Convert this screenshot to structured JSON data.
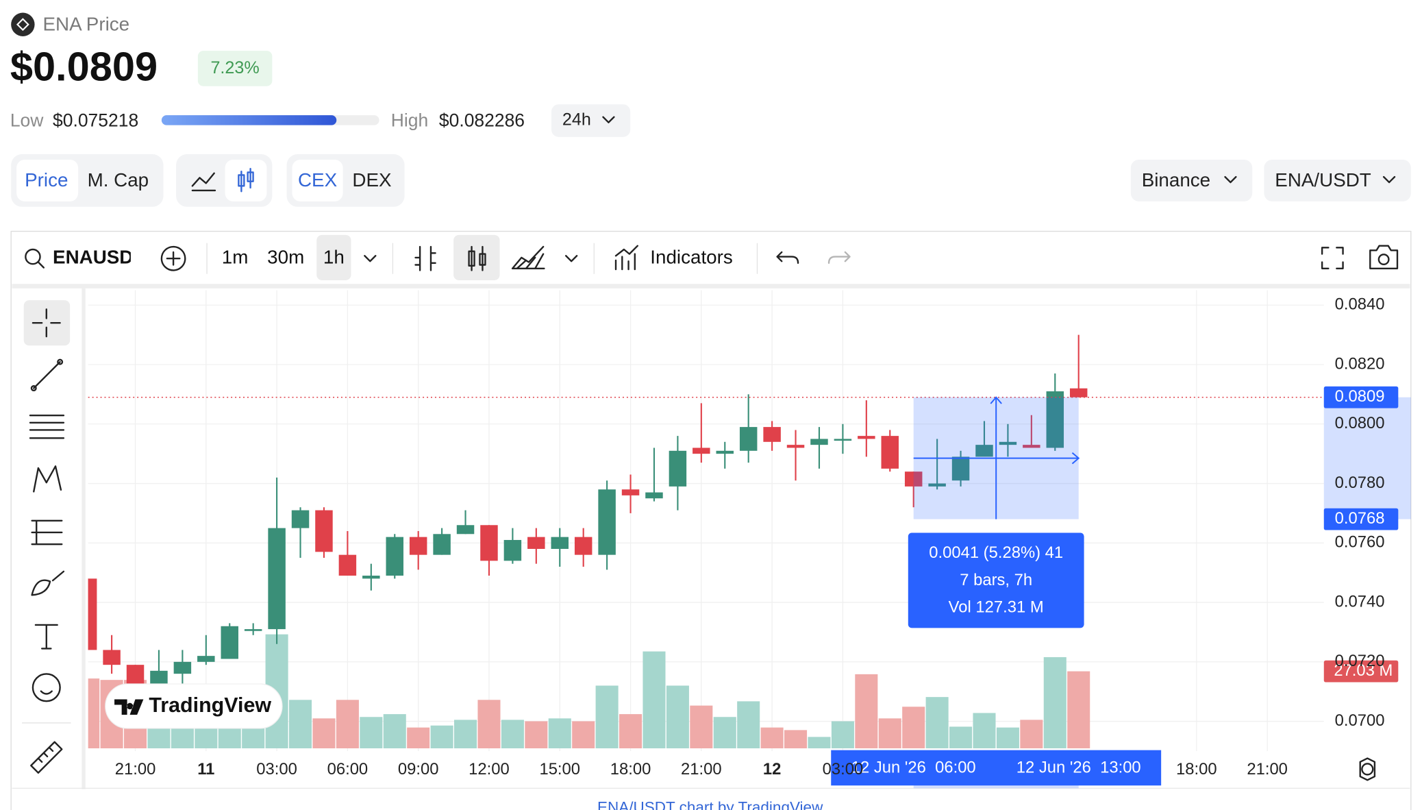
{
  "header": {
    "title": "ENA Price",
    "price": {
      "value": 0.0809,
      "label": "$0.0809"
    },
    "change": "7.23%",
    "low_label": "Low",
    "low": {
      "value": 0.075218,
      "label": "$0.075218"
    },
    "high_label": "High",
    "high": {
      "value": 0.082286,
      "label": "$0.082286"
    },
    "period": "24h"
  },
  "tabs": {
    "metric": [
      "Price",
      "M. Cap"
    ],
    "market": [
      "CEX",
      "DEX"
    ],
    "exchange": "Binance",
    "pair": "ENA/USDT"
  },
  "toolbar": {
    "symbol": "ENAUSD",
    "intervals": [
      "1m",
      "30m",
      "1h"
    ],
    "indicators": "Indicators"
  },
  "watermark": "TradingView",
  "footer": "ENA/USDT chart by TradingView",
  "chart_data": {
    "type": "candlestick",
    "open": [
      0.0748,
      0.0724,
      0.0719,
      0.0709,
      0.0716,
      0.072,
      0.0721,
      0.0731,
      0.0731,
      0.0765,
      0.0771,
      0.0756,
      0.0748,
      0.0749,
      0.0762,
      0.0756,
      0.0763,
      0.0766,
      0.0754,
      0.0762,
      0.0758,
      0.0762,
      0.0756,
      0.0778,
      0.0775,
      0.0779,
      0.0792,
      0.079,
      0.0791,
      0.0799,
      0.0793,
      0.0793,
      0.0795,
      0.0796,
      0.0796,
      0.0784,
      0.0779,
      0.0781,
      0.0789,
      0.0793,
      0.0793,
      0.0792,
      0.0812
    ],
    "high": [
      0.0748,
      0.0729,
      0.0719,
      0.0724,
      0.0724,
      0.0729,
      0.0733,
      0.0733,
      0.0782,
      0.0772,
      0.0772,
      0.0764,
      0.0753,
      0.0763,
      0.0764,
      0.0765,
      0.0771,
      0.0766,
      0.0765,
      0.0765,
      0.0765,
      0.0765,
      0.0781,
      0.0783,
      0.0792,
      0.0796,
      0.0807,
      0.0794,
      0.081,
      0.0801,
      0.0798,
      0.0799,
      0.08,
      0.0808,
      0.0798,
      0.0784,
      0.0795,
      0.0791,
      0.0801,
      0.08,
      0.0803,
      0.0817,
      0.083
    ],
    "low": [
      0.0724,
      0.0716,
      0.0707,
      0.0708,
      0.071,
      0.0719,
      0.0721,
      0.0729,
      0.0726,
      0.0755,
      0.0755,
      0.0749,
      0.0744,
      0.0748,
      0.0751,
      0.0756,
      0.0763,
      0.0749,
      0.0753,
      0.0753,
      0.0752,
      0.0752,
      0.0751,
      0.077,
      0.0774,
      0.0771,
      0.0787,
      0.0785,
      0.0787,
      0.0791,
      0.0781,
      0.0785,
      0.079,
      0.0789,
      0.0784,
      0.0772,
      0.0778,
      0.0779,
      0.0789,
      0.0789,
      0.0792,
      0.0791,
      0.0809
    ],
    "close": [
      0.0724,
      0.0719,
      0.0709,
      0.0717,
      0.072,
      0.0722,
      0.0732,
      0.0731,
      0.0765,
      0.0771,
      0.0757,
      0.0749,
      0.0749,
      0.0762,
      0.0756,
      0.0763,
      0.0766,
      0.0754,
      0.0761,
      0.0758,
      0.0762,
      0.0756,
      0.0778,
      0.0776,
      0.0777,
      0.0791,
      0.079,
      0.0791,
      0.0799,
      0.0794,
      0.0792,
      0.0795,
      0.0795,
      0.0795,
      0.0785,
      0.0779,
      0.078,
      0.0789,
      0.0793,
      0.0794,
      0.0792,
      0.0811,
      0.0809
    ],
    "volume": [
      24.5,
      24,
      24,
      13,
      10,
      8,
      11,
      8,
      40,
      17,
      10.5,
      17,
      11,
      12,
      7.3,
      8,
      10,
      17,
      10,
      9.5,
      10.5,
      9.5,
      22,
      12,
      34,
      22,
      15,
      11,
      16.5,
      7.3,
      6.4,
      4,
      9.5,
      26,
      10.5,
      14.6,
      18,
      7.6,
      12.4,
      7.3,
      10,
      32,
      27.03
    ],
    "up_color": "#3a8f78",
    "down_color": "#e0414a",
    "up_volume_color": "#a5d6cd",
    "down_volume_color": "#efaaa8",
    "xlim": [
      0,
      52.4
    ],
    "xticks": [
      {
        "value": 2,
        "label": "21:00"
      },
      {
        "value": 5,
        "label": "11"
      },
      {
        "value": 8,
        "label": "03:00"
      },
      {
        "value": 11,
        "label": "06:00"
      },
      {
        "value": 14,
        "label": "09:00"
      },
      {
        "value": 17,
        "label": "12:00"
      },
      {
        "value": 20,
        "label": "15:00"
      },
      {
        "value": 23,
        "label": "18:00"
      },
      {
        "value": 26,
        "label": "21:00"
      },
      {
        "value": 29,
        "label": "12"
      },
      {
        "value": 32,
        "label": "03:00"
      },
      {
        "value": 47,
        "label": "18:00"
      },
      {
        "value": 50,
        "label": "21:00"
      }
    ],
    "ylim": [
      0.069,
      0.0845
    ],
    "yticks": [
      {
        "value": 0.084,
        "label": "0.0840"
      },
      {
        "value": 0.082,
        "label": "0.0820"
      },
      {
        "value": 0.08,
        "label": "0.0800"
      },
      {
        "value": 0.078,
        "label": "0.0780"
      },
      {
        "value": 0.076,
        "label": "0.0760"
      },
      {
        "value": 0.074,
        "label": "0.0740"
      },
      {
        "value": 0.072,
        "label": "0.0720"
      },
      {
        "value": 0.07,
        "label": "0.0700"
      }
    ],
    "volume_lim": [
      0,
      120
    ],
    "grid": true,
    "last_price": {
      "value": 0.0809,
      "label": "0.0809"
    },
    "last_volume": {
      "value": 27.03,
      "label": "27.03 M"
    },
    "measure": {
      "start": 35,
      "end": 42,
      "from": {
        "value": 0.0768,
        "label": "0.0768"
      },
      "to": 0.0809,
      "lines": [
        "0.0041 (5.28%) 41",
        "7 bars, 7h",
        "Vol 127.31 M"
      ],
      "start_label": "12 Jun '26  06:00",
      "end_label": "12 Jun '26  13:00"
    }
  }
}
